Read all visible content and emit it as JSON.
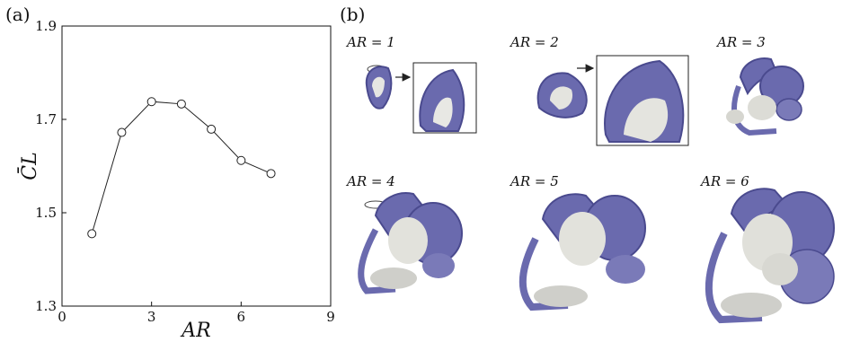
{
  "panel_a": {
    "label": "(a)",
    "chart_data": {
      "type": "line",
      "x": [
        1,
        2,
        3,
        4,
        5,
        6,
        7
      ],
      "values": [
        1.455,
        1.672,
        1.738,
        1.733,
        1.679,
        1.612,
        1.584
      ],
      "xlabel": "AR",
      "ylabel": "C̄L",
      "xlim": [
        0,
        9
      ],
      "ylim": [
        1.3,
        1.9
      ],
      "xticks": [
        "0",
        "3",
        "6",
        "9"
      ],
      "yticks": [
        "1.3",
        "1.5",
        "1.7",
        "1.9"
      ],
      "marker": "open-circle",
      "grid": false
    }
  },
  "panel_b": {
    "label": "(b)",
    "cases": [
      {
        "label": "AR = 1"
      },
      {
        "label": "AR = 2"
      },
      {
        "label": "AR = 3"
      },
      {
        "label": "AR = 4"
      },
      {
        "label": "AR = 5"
      },
      {
        "label": "AR = 6"
      }
    ],
    "colors": {
      "vortex": "#6a6aae",
      "vortex_dark": "#4a4a8e",
      "secondary": "#cfcfca"
    }
  }
}
